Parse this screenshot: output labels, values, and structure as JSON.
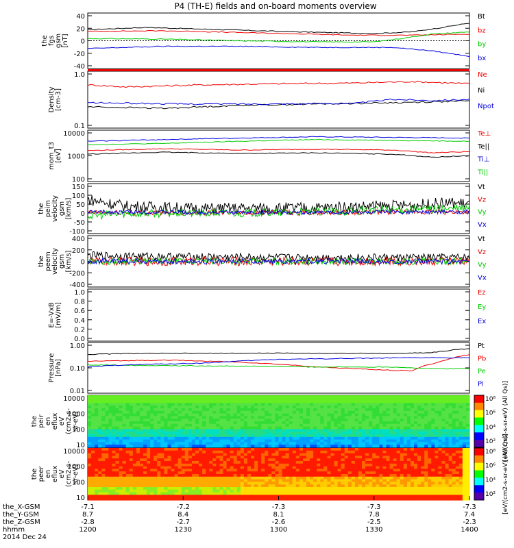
{
  "title": "P4 (TH-E) fields and on-board moments overview",
  "colors": {
    "black": "#000000",
    "red": "#ee0000",
    "green": "#00cc00",
    "blue": "#0000dd"
  },
  "chart_data": [
    {
      "type": "line",
      "panel": "fgs",
      "ylabel_lines": [
        "the",
        "fgs",
        "gsm",
        "[nT]"
      ],
      "yticks": [
        "40",
        "20",
        "0",
        "-20",
        "-40"
      ],
      "ylim": [
        -45,
        45
      ],
      "legend": [
        "Bt",
        "bz",
        "by",
        "bx"
      ],
      "series": [
        {
          "name": "Bt",
          "color": "#000000",
          "x": [
            0,
            0.15,
            0.35,
            0.55,
            0.75,
            0.85,
            0.92,
            1
          ],
          "y": [
            20,
            24,
            20,
            16,
            13,
            16,
            23,
            32
          ]
        },
        {
          "name": "bz",
          "color": "#ee0000",
          "x": [
            0,
            0.2,
            0.45,
            0.7,
            0.85,
            1
          ],
          "y": [
            17,
            18,
            14,
            10,
            10,
            12
          ]
        },
        {
          "name": "by",
          "color": "#00cc00",
          "x": [
            0,
            0.2,
            0.4,
            0.6,
            0.75,
            0.82,
            0.9,
            1
          ],
          "y": [
            4,
            3,
            0,
            -2,
            -2,
            4,
            12,
            16
          ]
        },
        {
          "name": "bx",
          "color": "#0000dd",
          "x": [
            0,
            0.2,
            0.4,
            0.6,
            0.8,
            0.9,
            1
          ],
          "y": [
            -14,
            -10,
            -10,
            -12,
            -12,
            -18,
            -28
          ]
        }
      ]
    },
    {
      "type": "line",
      "panel": "density",
      "log": true,
      "ylabel_lines": [
        "Density",
        "[cm-3]"
      ],
      "yticks": [
        "1.0",
        "0.1"
      ],
      "ylim": [
        0.1,
        1.4
      ],
      "legend": [
        "Ne",
        "Ni",
        "Npot"
      ],
      "series": [
        {
          "name": "Ne",
          "color": "#ee0000",
          "x": [
            0,
            0.1,
            0.3,
            0.5,
            0.7,
            0.85,
            1
          ],
          "y": [
            0.8,
            0.72,
            0.8,
            0.85,
            0.88,
            0.95,
            0.85
          ]
        },
        {
          "name": "Ni",
          "color": "#000000",
          "x": [
            0,
            0.2,
            0.4,
            0.6,
            0.8,
            1
          ],
          "y": [
            0.26,
            0.24,
            0.28,
            0.3,
            0.32,
            0.35
          ]
        },
        {
          "name": "Npot",
          "color": "#0000dd",
          "x": [
            0,
            0.25,
            0.5,
            0.7,
            0.8,
            0.9,
            1
          ],
          "y": [
            0.32,
            0.3,
            0.3,
            0.31,
            0.38,
            0.36,
            0.38
          ]
        }
      ]
    },
    {
      "type": "line",
      "panel": "temperature",
      "log": true,
      "ylabel_lines": [
        "mom_t3",
        "[eV]"
      ],
      "yticks": [
        "10000",
        "1000",
        "100"
      ],
      "ylim": [
        100,
        12000
      ],
      "legend": [
        "Te⊥",
        "Te||",
        "Ti⊥",
        "Ti||"
      ],
      "series": [
        {
          "name": "Te⊥",
          "color": "#ee0000",
          "x": [
            0,
            0.2,
            0.4,
            0.6,
            0.8,
            0.9,
            1
          ],
          "y": [
            1900,
            2300,
            2000,
            2200,
            2000,
            1500,
            1700
          ]
        },
        {
          "name": "Te||",
          "color": "#000000",
          "x": [
            0,
            0.2,
            0.4,
            0.6,
            0.8,
            0.9,
            1
          ],
          "y": [
            1300,
            1600,
            1400,
            1500,
            1300,
            950,
            1100
          ]
        },
        {
          "name": "Ti⊥",
          "color": "#0000dd",
          "x": [
            0,
            0.2,
            0.4,
            0.6,
            0.8,
            1
          ],
          "y": [
            5000,
            6000,
            7000,
            8000,
            7500,
            7000
          ]
        },
        {
          "name": "Ti||",
          "color": "#00cc00",
          "x": [
            0,
            0.2,
            0.4,
            0.6,
            0.8,
            1
          ],
          "y": [
            3500,
            4000,
            5000,
            6000,
            5500,
            5000
          ]
        }
      ]
    },
    {
      "type": "line",
      "panel": "peim_velocity",
      "noisy": true,
      "ylabel_lines": [
        "the",
        "peim",
        "velocity",
        "gsm",
        "[km/s]"
      ],
      "yticks": [
        "150",
        "100",
        "50",
        "0",
        "-50",
        "-100"
      ],
      "ylim": [
        -110,
        160
      ],
      "legend": [
        "Vt",
        "Vz",
        "Vy",
        "Vx"
      ],
      "series": [
        {
          "name": "Vt",
          "color": "#000000",
          "x": [
            0,
            0.1,
            0.3,
            0.6,
            0.85,
            0.95,
            1
          ],
          "y": [
            80,
            40,
            25,
            30,
            45,
            60,
            55
          ],
          "amp": 35
        },
        {
          "name": "Vz",
          "color": "#ee0000",
          "x": [
            0,
            0.5,
            1
          ],
          "y": [
            0,
            0,
            5
          ],
          "amp": 15
        },
        {
          "name": "Vy",
          "color": "#00cc00",
          "x": [
            0,
            0.1,
            0.5,
            0.85,
            1
          ],
          "y": [
            -20,
            -5,
            0,
            20,
            25
          ],
          "amp": 25
        },
        {
          "name": "Vx",
          "color": "#0000dd",
          "x": [
            0,
            0.5,
            1
          ],
          "y": [
            5,
            0,
            5
          ],
          "amp": 12
        }
      ]
    },
    {
      "type": "line",
      "panel": "peem_velocity",
      "noisy": true,
      "ylabel_lines": [
        "the",
        "peem",
        "velocity",
        "gsm",
        "[km/s]"
      ],
      "yticks": [
        "400",
        "200",
        "0",
        "-200",
        "-400"
      ],
      "ylim": [
        -420,
        420
      ],
      "legend": [
        "Vt",
        "Vz",
        "Vy",
        "Vx"
      ],
      "series": [
        {
          "name": "Vt",
          "color": "#000000",
          "x": [
            0,
            0.2,
            0.5,
            1
          ],
          "y": [
            110,
            90,
            70,
            70
          ],
          "amp": 70
        },
        {
          "name": "Vz",
          "color": "#ee0000",
          "x": [
            0,
            0.5,
            1
          ],
          "y": [
            0,
            0,
            0
          ],
          "amp": 80
        },
        {
          "name": "Vy",
          "color": "#00cc00",
          "x": [
            0,
            0.5,
            1
          ],
          "y": [
            0,
            0,
            0
          ],
          "amp": 60
        },
        {
          "name": "Vx",
          "color": "#0000dd",
          "x": [
            0,
            0.5,
            1
          ],
          "y": [
            0,
            0,
            0
          ],
          "amp": 50
        }
      ]
    },
    {
      "type": "line",
      "panel": "efield",
      "ylabel_lines": [
        "E=-VxB",
        "[mV/m]"
      ],
      "yticks": [
        "1.0",
        "0.8",
        "0.6",
        "0.4",
        "0.2",
        "0.0"
      ],
      "ylim": [
        0,
        1
      ],
      "legend": [
        "Ez",
        "Ey",
        "Ex"
      ],
      "series": []
    },
    {
      "type": "line",
      "panel": "pressure",
      "log": true,
      "ylabel_lines": [
        "Pressure",
        "[nPa]"
      ],
      "yticks": [
        "1.00",
        "0.10",
        "0.01"
      ],
      "ylim": [
        0.01,
        1.2
      ],
      "legend": [
        "Pt",
        "Pb",
        "Pe",
        "Pi"
      ],
      "series": [
        {
          "name": "Pt",
          "color": "#000000",
          "x": [
            0,
            0.1,
            0.5,
            0.8,
            0.9,
            1
          ],
          "y": [
            0.45,
            0.5,
            0.52,
            0.5,
            0.55,
            0.85
          ]
        },
        {
          "name": "Pb",
          "color": "#ee0000",
          "x": [
            0,
            0.2,
            0.4,
            0.6,
            0.75,
            0.85,
            0.92,
            1
          ],
          "y": [
            0.22,
            0.25,
            0.2,
            0.12,
            0.09,
            0.08,
            0.2,
            0.45
          ]
        },
        {
          "name": "Pe",
          "color": "#00cc00",
          "x": [
            0,
            0.2,
            0.4,
            0.6,
            0.8,
            0.9,
            1
          ],
          "y": [
            0.15,
            0.14,
            0.13,
            0.12,
            0.12,
            0.1,
            0.1
          ]
        },
        {
          "name": "Pi",
          "color": "#0000dd",
          "x": [
            0,
            0.1,
            0.3,
            0.5,
            0.7,
            0.9,
            1
          ],
          "y": [
            0.12,
            0.15,
            0.18,
            0.27,
            0.3,
            0.32,
            0.32
          ]
        }
      ]
    },
    {
      "type": "heatmap",
      "panel": "peir_spec",
      "ylabel_lines": [
        "the",
        "peir",
        "en",
        "eflux",
        "eV",
        "(cm2-s-",
        "sr-eV)"
      ],
      "yticks": [
        "10000",
        "1000",
        "100",
        "10"
      ],
      "colorbar_ticks": [
        "10⁸",
        "10⁶",
        "10⁴",
        "10²"
      ],
      "colorbar_label": "eV/(cm2-s-sr-eV) (All Qs)"
    },
    {
      "type": "heatmap",
      "panel": "peer_spec",
      "ylabel_lines": [
        "the",
        "peer",
        "en",
        "eflux",
        "eV",
        "(cm2-s-",
        "sr-eV)"
      ],
      "yticks": [
        "10000",
        "1000",
        "100",
        "10"
      ],
      "colorbar_ticks": [
        "10⁸",
        "10⁶",
        "10⁴",
        "10²"
      ],
      "colorbar_label": "eV/(cm2-s-sr-eV) (All Qs)"
    }
  ],
  "xaxis": {
    "labels": [
      "the_X-GSM",
      "the_Y-GSM",
      "the_Z-GSM",
      "hhmm",
      "2014 Dec 24"
    ],
    "ticks": [
      [
        "-7.1",
        "8.7",
        "-2.8",
        "1200"
      ],
      [
        "-7.2",
        "8.4",
        "-2.7",
        "1230"
      ],
      [
        "-7.3",
        "8.1",
        "-2.6",
        "1300"
      ],
      [
        "-7.3",
        "7.8",
        "-2.5",
        "1330"
      ],
      [
        "-7.3",
        "7.4",
        "-2.3",
        "1400"
      ]
    ]
  }
}
